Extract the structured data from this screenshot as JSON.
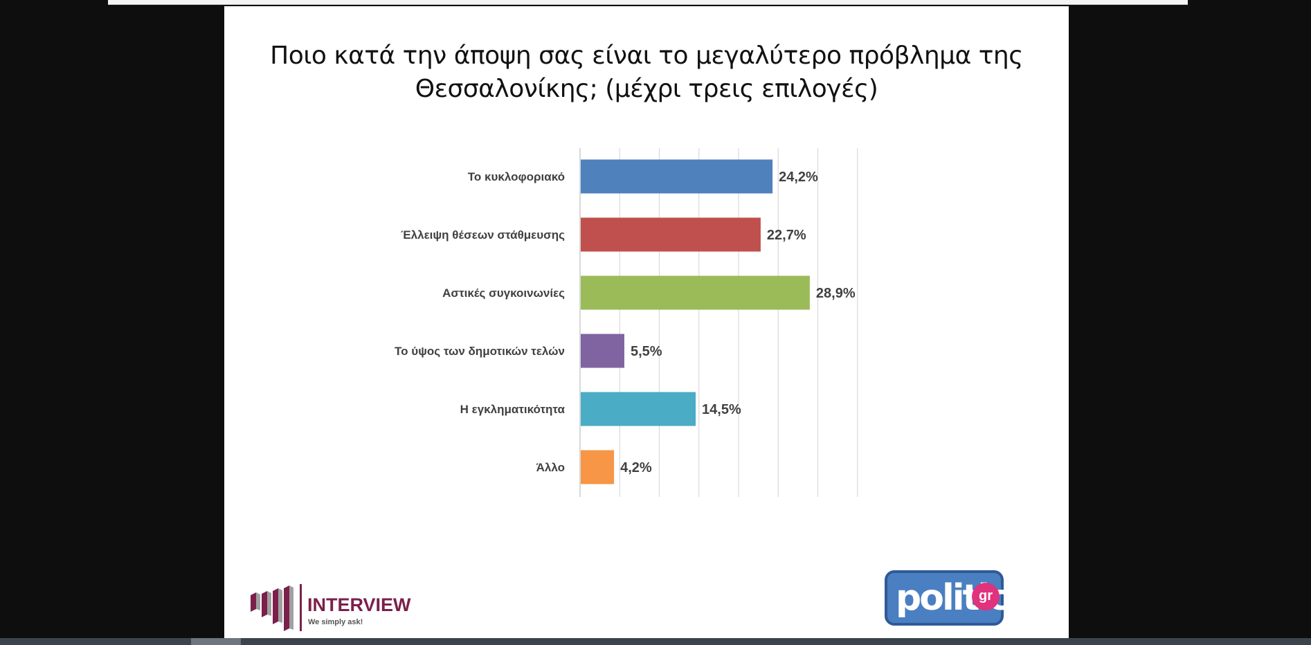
{
  "chart_data": {
    "type": "bar",
    "orientation": "horizontal",
    "title_lines": [
      "Ποιο κατά την άποψη σας είναι το μεγαλύτερο πρόβλημα της",
      "Θεσσαλονίκης; (μέχρι τρεις επιλογές)"
    ],
    "categories": [
      "Το κυκλοφοριακό",
      "Έλλειψη  θέσεων στάθμευσης",
      "Αστικές συγκοινωνίες",
      "Το ύψος των δημοτικών τελών",
      "Η εγκληματικότητα",
      "Άλλο"
    ],
    "values": [
      24.2,
      22.7,
      28.9,
      5.5,
      14.5,
      4.2
    ],
    "value_labels": [
      "24,2%",
      "22,7%",
      "28,9%",
      "5,5%",
      "14,5%",
      "4,2%"
    ],
    "colors": [
      "#4f81bd",
      "#c0504d",
      "#9bbb59",
      "#8064a2",
      "#4bacc6",
      "#f79646"
    ],
    "xlim": [
      0,
      35
    ],
    "grid": true,
    "legend": "none"
  },
  "branding": {
    "interview_name": "INTERVIEW",
    "interview_tagline": "We simply ask!",
    "interview_color": "#7b1f4b",
    "politic_word": "politic",
    "politic_badge": "gr",
    "politic_color": "#4a7fc1"
  }
}
